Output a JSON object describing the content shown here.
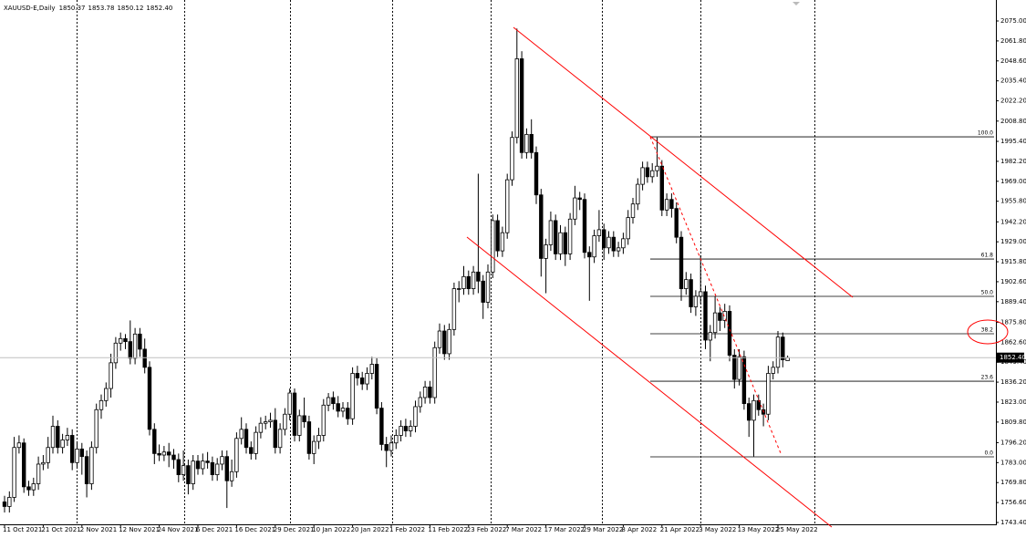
{
  "chart_data": {
    "type": "candlestick",
    "symbol": "XAUUSD-E,Daily",
    "last_ohlc_labels": [
      "1850.37",
      "1853.78",
      "1850.12",
      "1852.40"
    ],
    "categories": [
      "11 Oct 2021",
      null,
      null,
      null,
      null,
      null,
      null,
      null,
      "21 Oct 2021",
      null,
      null,
      null,
      null,
      null,
      null,
      null,
      "2 Nov 2021",
      null,
      null,
      null,
      null,
      null,
      null,
      null,
      "12 Nov 2021",
      null,
      null,
      null,
      null,
      null,
      null,
      null,
      "24 Nov 2021",
      null,
      null,
      null,
      null,
      null,
      null,
      null,
      "6 Dec 2021",
      null,
      null,
      null,
      null,
      null,
      null,
      null,
      "16 Dec 2021",
      null,
      null,
      null,
      null,
      null,
      null,
      null,
      "29 Dec 2021",
      null,
      null,
      null,
      null,
      null,
      null,
      null,
      "10 Jan 2022",
      null,
      null,
      null,
      null,
      null,
      null,
      null,
      "20 Jan 2022",
      null,
      null,
      null,
      null,
      null,
      null,
      null,
      "1 Feb 2022",
      null,
      null,
      null,
      null,
      null,
      null,
      null,
      "11 Feb 2022",
      null,
      null,
      null,
      null,
      null,
      null,
      null,
      "23 Feb 2022",
      null,
      null,
      null,
      null,
      null,
      null,
      null,
      "7 Mar 2022",
      null,
      null,
      null,
      null,
      null,
      null,
      null,
      "17 Mar 2022",
      null,
      null,
      null,
      null,
      null,
      null,
      null,
      "29 Mar 2022",
      null,
      null,
      null,
      null,
      null,
      null,
      null,
      "8 Apr 2022",
      null,
      null,
      null,
      null,
      null,
      null,
      null,
      "21 Apr 2022",
      null,
      null,
      null,
      null,
      null,
      null,
      null,
      "3 May 2022",
      null,
      null,
      null,
      null,
      null,
      null,
      null,
      "13 May 2022",
      null,
      null,
      null,
      null,
      null,
      null,
      null,
      "25 May 2022",
      null,
      null
    ],
    "candles": {
      "open": [
        1757,
        1754,
        1760,
        1793,
        1796,
        1767,
        1765,
        1769,
        1782,
        1783,
        1793,
        1807,
        1793,
        1798,
        1801,
        1783,
        1792,
        1787,
        1769,
        1793,
        1818,
        1824,
        1832,
        1849,
        1862,
        1865,
        1863,
        1852,
        1868,
        1858,
        1846,
        1805,
        1789,
        1788,
        1790,
        1788,
        1785,
        1775,
        1781,
        1769,
        1784,
        1779,
        1784,
        1783,
        1775,
        1782,
        1787,
        1771,
        1777,
        1799,
        1805,
        1793,
        1789,
        1803,
        1809,
        1810,
        1811,
        1793,
        1805,
        1815,
        1829,
        1801,
        1814,
        1810,
        1789,
        1797,
        1801,
        1821,
        1826,
        1822,
        1817,
        1819,
        1812,
        1842,
        1839,
        1835,
        1842,
        1848,
        1819,
        1795,
        1791,
        1796,
        1801,
        1807,
        1804,
        1807,
        1820,
        1826,
        1833,
        1826,
        1859,
        1870,
        1855,
        1871,
        1898,
        1898,
        1906,
        1898,
        1909,
        1903,
        1889,
        1909,
        1943,
        1923,
        1935,
        1970,
        1998,
        2050,
        1988,
        2000,
        1988,
        1960,
        1918,
        1927,
        1943,
        1921,
        1935,
        1921,
        1944,
        1958,
        1957,
        1922,
        1919,
        1933,
        1937,
        1925,
        1932,
        1923,
        1925,
        1931,
        1945,
        1954,
        1967,
        1978,
        1972,
        1976,
        1979,
        1950,
        1957,
        1951,
        1932,
        1898,
        1904,
        1886,
        1893,
        1896,
        1864,
        1869,
        1882,
        1877,
        1883,
        1854,
        1838,
        1853,
        1822,
        1811,
        1824,
        1818,
        1815,
        1842,
        1846,
        1866,
        1850.37
      ],
      "high": [
        1761,
        1764,
        1800,
        1801,
        1799,
        1771,
        1773,
        1787,
        1788,
        1800,
        1814,
        1811,
        1802,
        1806,
        1805,
        1796,
        1796,
        1791,
        1797,
        1822,
        1828,
        1836,
        1855,
        1866,
        1869,
        1868,
        1877,
        1872,
        1872,
        1865,
        1850,
        1809,
        1795,
        1794,
        1796,
        1792,
        1789,
        1791,
        1785,
        1788,
        1788,
        1789,
        1790,
        1787,
        1786,
        1791,
        1791,
        1785,
        1803,
        1813,
        1809,
        1797,
        1807,
        1813,
        1814,
        1816,
        1819,
        1809,
        1819,
        1832,
        1832,
        1818,
        1826,
        1814,
        1801,
        1806,
        1825,
        1829,
        1830,
        1827,
        1823,
        1823,
        1846,
        1847,
        1843,
        1846,
        1853,
        1852,
        1823,
        1800,
        1801,
        1805,
        1811,
        1812,
        1811,
        1824,
        1830,
        1837,
        1837,
        1863,
        1875,
        1874,
        1875,
        1902,
        1903,
        1913,
        1910,
        1913,
        1974,
        1907,
        1914,
        1947,
        1947,
        1939,
        1974,
        2002,
        2070,
        2055,
        2004,
        2010,
        1992,
        1964,
        1931,
        1949,
        1947,
        1940,
        1939,
        1948,
        1966,
        1962,
        1961,
        1926,
        1937,
        1950,
        1941,
        1936,
        1936,
        1929,
        1935,
        1950,
        1958,
        1971,
        1982,
        1982,
        1981,
        1998,
        1983,
        1961,
        1961,
        1955,
        1936,
        1909,
        1908,
        1897,
        1920,
        1900,
        1874,
        1893,
        1886,
        1888,
        1887,
        1858,
        1858,
        1857,
        1826,
        1828,
        1828,
        1822,
        1847,
        1850,
        1870,
        1869,
        1853.78
      ],
      "low": [
        1750,
        1750,
        1757,
        1789,
        1763,
        1761,
        1761,
        1765,
        1778,
        1779,
        1789,
        1789,
        1789,
        1794,
        1778,
        1779,
        1775,
        1760,
        1765,
        1789,
        1812,
        1820,
        1826,
        1845,
        1857,
        1858,
        1848,
        1848,
        1853,
        1842,
        1801,
        1782,
        1784,
        1784,
        1780,
        1779,
        1770,
        1771,
        1762,
        1765,
        1775,
        1775,
        1779,
        1771,
        1771,
        1778,
        1753,
        1767,
        1773,
        1795,
        1789,
        1785,
        1785,
        1799,
        1805,
        1806,
        1789,
        1789,
        1801,
        1811,
        1797,
        1797,
        1806,
        1785,
        1782,
        1792,
        1797,
        1817,
        1818,
        1813,
        1813,
        1808,
        1808,
        1834,
        1831,
        1831,
        1838,
        1815,
        1791,
        1780,
        1787,
        1792,
        1797,
        1800,
        1800,
        1803,
        1816,
        1822,
        1822,
        1822,
        1855,
        1851,
        1851,
        1867,
        1889,
        1894,
        1894,
        1894,
        1895,
        1878,
        1885,
        1905,
        1919,
        1919,
        1931,
        1966,
        1994,
        1984,
        1984,
        1984,
        1954,
        1906,
        1895,
        1923,
        1917,
        1917,
        1913,
        1917,
        1940,
        1950,
        1918,
        1890,
        1915,
        1929,
        1917,
        1921,
        1919,
        1919,
        1921,
        1927,
        1941,
        1950,
        1963,
        1968,
        1968,
        1972,
        1946,
        1946,
        1945,
        1928,
        1890,
        1894,
        1882,
        1880,
        1888,
        1858,
        1850,
        1865,
        1870,
        1872,
        1850,
        1832,
        1834,
        1818,
        1800,
        1787,
        1814,
        1807,
        1811,
        1838,
        1842,
        1846,
        1850.12
      ],
      "close": [
        1754,
        1760,
        1793,
        1796,
        1767,
        1765,
        1769,
        1782,
        1783,
        1793,
        1807,
        1793,
        1798,
        1801,
        1783,
        1792,
        1787,
        1769,
        1793,
        1818,
        1824,
        1832,
        1849,
        1862,
        1865,
        1863,
        1852,
        1868,
        1858,
        1846,
        1805,
        1789,
        1788,
        1790,
        1788,
        1785,
        1775,
        1781,
        1769,
        1784,
        1779,
        1784,
        1783,
        1775,
        1782,
        1787,
        1771,
        1777,
        1799,
        1805,
        1793,
        1789,
        1803,
        1809,
        1810,
        1811,
        1793,
        1805,
        1815,
        1829,
        1801,
        1814,
        1810,
        1789,
        1797,
        1801,
        1821,
        1826,
        1822,
        1817,
        1819,
        1812,
        1842,
        1839,
        1835,
        1842,
        1848,
        1819,
        1795,
        1791,
        1796,
        1801,
        1807,
        1804,
        1807,
        1820,
        1826,
        1833,
        1826,
        1859,
        1870,
        1855,
        1871,
        1898,
        1898,
        1906,
        1898,
        1909,
        1903,
        1889,
        1909,
        1943,
        1923,
        1935,
        1970,
        1998,
        2050,
        1988,
        2000,
        1988,
        1960,
        1918,
        1927,
        1943,
        1921,
        1935,
        1921,
        1944,
        1958,
        1957,
        1922,
        1919,
        1933,
        1937,
        1925,
        1932,
        1923,
        1925,
        1931,
        1945,
        1954,
        1967,
        1978,
        1972,
        1976,
        1979,
        1950,
        1957,
        1951,
        1932,
        1898,
        1904,
        1886,
        1893,
        1896,
        1864,
        1869,
        1882,
        1877,
        1883,
        1854,
        1838,
        1853,
        1822,
        1811,
        1824,
        1818,
        1815,
        1842,
        1846,
        1866,
        1851,
        1852.4
      ]
    },
    "up_color": "#ffffff",
    "down_color": "#000000",
    "ylim": [
      1743.4,
      2075
    ],
    "yticks": [
      {
        "value": 2075,
        "label": "2075.00"
      },
      {
        "value": 2061.8,
        "label": "2061.80"
      },
      {
        "value": 2048.6,
        "label": "2048.60"
      },
      {
        "value": 2035.4,
        "label": "2035.40"
      },
      {
        "value": 2022.2,
        "label": "2022.20"
      },
      {
        "value": 2008.8,
        "label": "2008.80"
      },
      {
        "value": 1995.4,
        "label": "1995.40"
      },
      {
        "value": 1982.2,
        "label": "1982.20"
      },
      {
        "value": 1969,
        "label": "1969.00"
      },
      {
        "value": 1955.8,
        "label": "1955.80"
      },
      {
        "value": 1942.2,
        "label": "1942.20"
      },
      {
        "value": 1929,
        "label": "1929.00"
      },
      {
        "value": 1915.8,
        "label": "1915.80"
      },
      {
        "value": 1902.6,
        "label": "1902.60"
      },
      {
        "value": 1889.4,
        "label": "1889.40"
      },
      {
        "value": 1875.8,
        "label": "1875.80"
      },
      {
        "value": 1862.6,
        "label": "1862.60"
      },
      {
        "value": 1849.4,
        "label": "1849.40"
      },
      {
        "value": 1836.2,
        "label": "1836.20"
      },
      {
        "value": 1823,
        "label": "1823.00"
      },
      {
        "value": 1809.8,
        "label": "1809.80"
      },
      {
        "value": 1796.2,
        "label": "1796.20"
      },
      {
        "value": 1783,
        "label": "1783.00"
      },
      {
        "value": 1769.8,
        "label": "1769.80"
      },
      {
        "value": 1756.6,
        "label": "1756.60"
      },
      {
        "value": 1743.4,
        "label": "1743.40"
      }
    ],
    "grid": false,
    "fibonacci": {
      "levels": [
        {
          "value": 100,
          "label": "100.0"
        },
        61.8,
        {
          "value": 50,
          "label": "50.0"
        },
        38.2,
        23.6,
        {
          "value": 0,
          "label": "0.0"
        }
      ],
      "prices": [
        1998.4,
        1917.6,
        1892.9,
        1868.2,
        1836.8,
        1786.8
      ]
    }
  }
}
